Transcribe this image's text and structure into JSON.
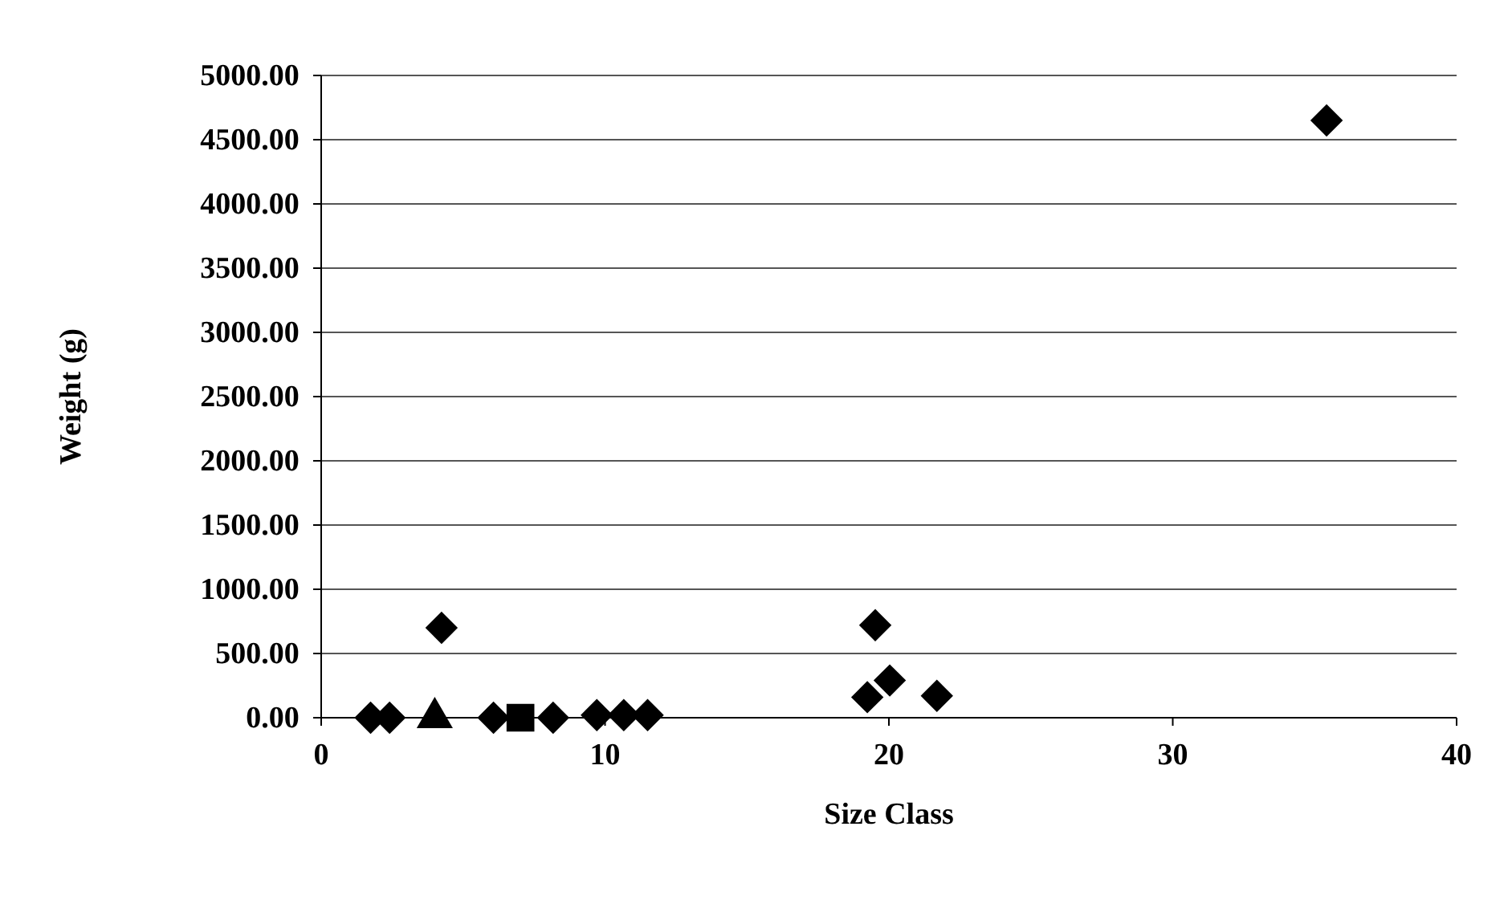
{
  "chart_data": {
    "type": "scatter",
    "xlabel": "Size Class",
    "ylabel": "Weight (g)",
    "xlim": [
      0,
      40
    ],
    "xticks": [
      0,
      10,
      20,
      30,
      40
    ],
    "ylim": [
      0,
      5000
    ],
    "yticks": [
      {
        "value": 0,
        "label": "0.00"
      },
      {
        "value": 500,
        "label": "500.00"
      },
      {
        "value": 1000,
        "label": "1000.00"
      },
      {
        "value": 1500,
        "label": "1500.00"
      },
      {
        "value": 2000,
        "label": "2000.00"
      },
      {
        "value": 2500,
        "label": "2500.00"
      },
      {
        "value": 3000,
        "label": "3000.00"
      },
      {
        "value": 3500,
        "label": "3500.00"
      },
      {
        "value": 4000,
        "label": "4000.00"
      },
      {
        "value": 4500,
        "label": "4500.00"
      },
      {
        "value": 5000,
        "label": "5000.00"
      }
    ],
    "grid": "y",
    "series": [
      {
        "color": "#000000",
        "marker": "diamond",
        "x": [
          1.74,
          2.41,
          4.24,
          6.07,
          8.17,
          9.71,
          10.66,
          11.5,
          19.24,
          19.52,
          20.03,
          21.69,
          35.42
        ],
        "values": [
          0,
          0,
          700,
          0,
          0,
          20,
          20,
          20,
          160,
          720,
          290,
          170,
          4650
        ]
      },
      {
        "color": "#000000",
        "marker": "triangle",
        "x": [
          4.0
        ],
        "values": [
          0
        ]
      },
      {
        "color": "#000000",
        "marker": "square",
        "x": [
          7.02
        ],
        "values": [
          0
        ]
      }
    ]
  }
}
